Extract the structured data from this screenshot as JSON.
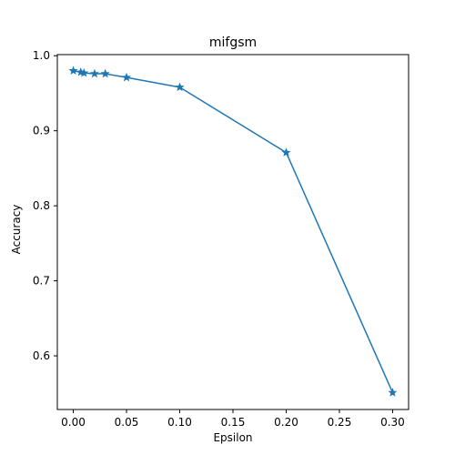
{
  "chart_data": {
    "type": "line",
    "title": "mifgsm",
    "xlabel": "Epsilon",
    "ylabel": "Accuracy",
    "xlim": [
      -0.015,
      0.315
    ],
    "ylim": [
      0.5285,
      1.0015
    ],
    "xticks": [
      0.0,
      0.05,
      0.1,
      0.15,
      0.2,
      0.25,
      0.3
    ],
    "xtick_labels": [
      "0.00",
      "0.05",
      "0.10",
      "0.15",
      "0.20",
      "0.25",
      "0.30"
    ],
    "yticks": [
      0.6,
      0.7,
      0.8,
      0.9,
      1.0
    ],
    "ytick_labels": [
      "0.6",
      "0.7",
      "0.8",
      "0.9",
      "1.0"
    ],
    "grid": false,
    "marker": "star",
    "color": "#1f77b4",
    "series": [
      {
        "x": [
          0.0,
          0.007,
          0.01,
          0.02,
          0.03,
          0.05,
          0.1,
          0.2,
          0.3
        ],
        "y": [
          0.98,
          0.978,
          0.977,
          0.976,
          0.976,
          0.971,
          0.958,
          0.871,
          0.551
        ]
      }
    ]
  }
}
